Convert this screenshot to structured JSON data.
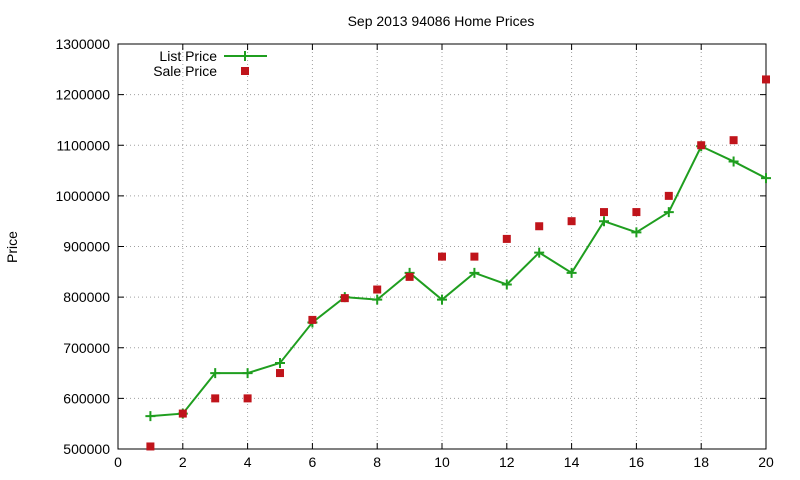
{
  "chart_data": {
    "type": "line",
    "title": "Sep 2013 94086 Home Prices",
    "xlabel": "",
    "ylabel": "Price",
    "xlim": [
      0,
      20
    ],
    "ylim": [
      500000,
      1300000
    ],
    "x_ticks": [
      0,
      2,
      4,
      6,
      8,
      10,
      12,
      14,
      16,
      18,
      20
    ],
    "y_ticks": [
      500000,
      600000,
      700000,
      800000,
      900000,
      1000000,
      1100000,
      1200000,
      1300000
    ],
    "grid": true,
    "legend_position": "top-left",
    "series": [
      {
        "name": "List Price",
        "style": "line-with-plus-markers",
        "color": "#1f9e1f",
        "x": [
          1,
          2,
          3,
          4,
          5,
          6,
          7,
          8,
          9,
          10,
          11,
          12,
          13,
          14,
          15,
          16,
          17,
          18,
          19,
          20
        ],
        "values": [
          565000,
          570000,
          650000,
          650000,
          670000,
          750000,
          800000,
          795000,
          848000,
          795000,
          848000,
          825000,
          888000,
          848000,
          950000,
          928000,
          968000,
          1098000,
          1068000,
          1035000
        ]
      },
      {
        "name": "Sale Price",
        "style": "square-markers",
        "color": "#c0141b",
        "x": [
          1,
          2,
          3,
          4,
          5,
          6,
          7,
          8,
          9,
          10,
          11,
          12,
          13,
          14,
          15,
          16,
          17,
          18,
          19,
          20
        ],
        "values": [
          505000,
          570000,
          600000,
          600000,
          650000,
          755000,
          798000,
          815000,
          840000,
          880000,
          880000,
          915000,
          940000,
          950000,
          968000,
          968000,
          1000000,
          1100000,
          1110000,
          1230000
        ]
      }
    ]
  }
}
